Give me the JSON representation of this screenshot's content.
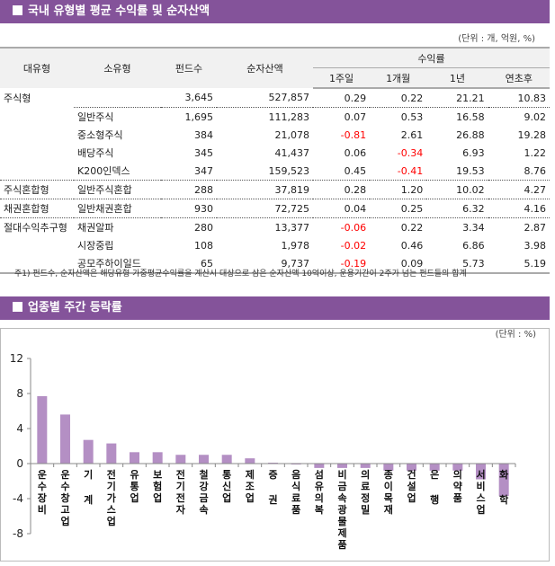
{
  "section1": {
    "title": "국내 유형별 평균 수익률 및 순자산액",
    "unit": "(단위 : 개, 억원, %)",
    "headers": {
      "major": "대유형",
      "minor": "소유형",
      "funds": "펀드수",
      "assets": "순자산액",
      "returns": "수익률",
      "w1": "1주일",
      "m1": "1개월",
      "y1": "1년",
      "ytd": "연초후"
    },
    "rows": [
      {
        "major": "주식형",
        "minor": "",
        "funds": "3,645",
        "assets": "527,857",
        "w1": "0.29",
        "m1": "0.22",
        "y1": "21.21",
        "ytd": "10.83"
      },
      {
        "major": "",
        "minor": "일반주식",
        "funds": "1,695",
        "assets": "111,283",
        "w1": "0.07",
        "m1": "0.53",
        "y1": "16.58",
        "ytd": "9.02"
      },
      {
        "major": "",
        "minor": "중소형주식",
        "funds": "384",
        "assets": "21,078",
        "w1": "-0.81",
        "m1": "2.61",
        "y1": "26.88",
        "ytd": "19.28"
      },
      {
        "major": "",
        "minor": "배당주식",
        "funds": "345",
        "assets": "41,437",
        "w1": "0.06",
        "m1": "-0.34",
        "y1": "6.93",
        "ytd": "1.22"
      },
      {
        "major": "",
        "minor": "K200인덱스",
        "funds": "347",
        "assets": "159,523",
        "w1": "0.45",
        "m1": "-0.41",
        "y1": "19.53",
        "ytd": "8.76"
      },
      {
        "major": "주식혼합형",
        "minor": "일반주식혼합",
        "funds": "288",
        "assets": "37,819",
        "w1": "0.28",
        "m1": "1.20",
        "y1": "10.02",
        "ytd": "4.27"
      },
      {
        "major": "채권혼합형",
        "minor": "일반채권혼합",
        "funds": "930",
        "assets": "72,725",
        "w1": "0.04",
        "m1": "0.25",
        "y1": "6.32",
        "ytd": "4.16"
      },
      {
        "major": "절대수익추구형",
        "minor": "채권알파",
        "funds": "280",
        "assets": "13,377",
        "w1": "-0.06",
        "m1": "0.22",
        "y1": "3.34",
        "ytd": "2.87"
      },
      {
        "major": "",
        "minor": "시장중립",
        "funds": "108",
        "assets": "1,978",
        "w1": "-0.02",
        "m1": "0.46",
        "y1": "6.86",
        "ytd": "3.98"
      },
      {
        "major": "",
        "minor": "공모주하이일드",
        "funds": "65",
        "assets": "9,737",
        "w1": "-0.19",
        "m1": "0.09",
        "y1": "5.73",
        "ytd": "5.19"
      }
    ],
    "note": "주1) 펀드수, 순자산액은 해당유형 가중평균수익률을 계산시 대상으로 삼은 순자산액 10억이상, 운용기간이 2주가 넘는 펀드들의 합계"
  },
  "section2": {
    "title": "업종별 주간 등락률",
    "unit": "(단위 : %)"
  },
  "colors": {
    "header": "#84539a",
    "bar": "#b48fc4",
    "negative": "#ff0000"
  },
  "chart_data": {
    "type": "bar",
    "ylim": [
      -8,
      12
    ],
    "yticks": [
      12,
      8,
      4,
      0,
      -4,
      -8
    ],
    "grid": false,
    "categories": [
      "운수장비",
      "운수창고업",
      "기계",
      "전기가스업",
      "유통업",
      "보험업",
      "전기전자",
      "철강금속",
      "통신업",
      "제조업",
      "증권",
      "음식료품",
      "섬유의복",
      "비금속광물제품",
      "의료정밀",
      "종이목재",
      "건설업",
      "은행",
      "의약품",
      "서비스업",
      "화학"
    ],
    "values": [
      7.7,
      5.6,
      2.7,
      2.3,
      1.3,
      1.3,
      1.0,
      1.0,
      1.0,
      0.6,
      0.1,
      -0.1,
      -0.5,
      -0.5,
      -0.5,
      -0.8,
      -0.8,
      -0.8,
      -0.8,
      -1.8,
      -3.7
    ]
  }
}
